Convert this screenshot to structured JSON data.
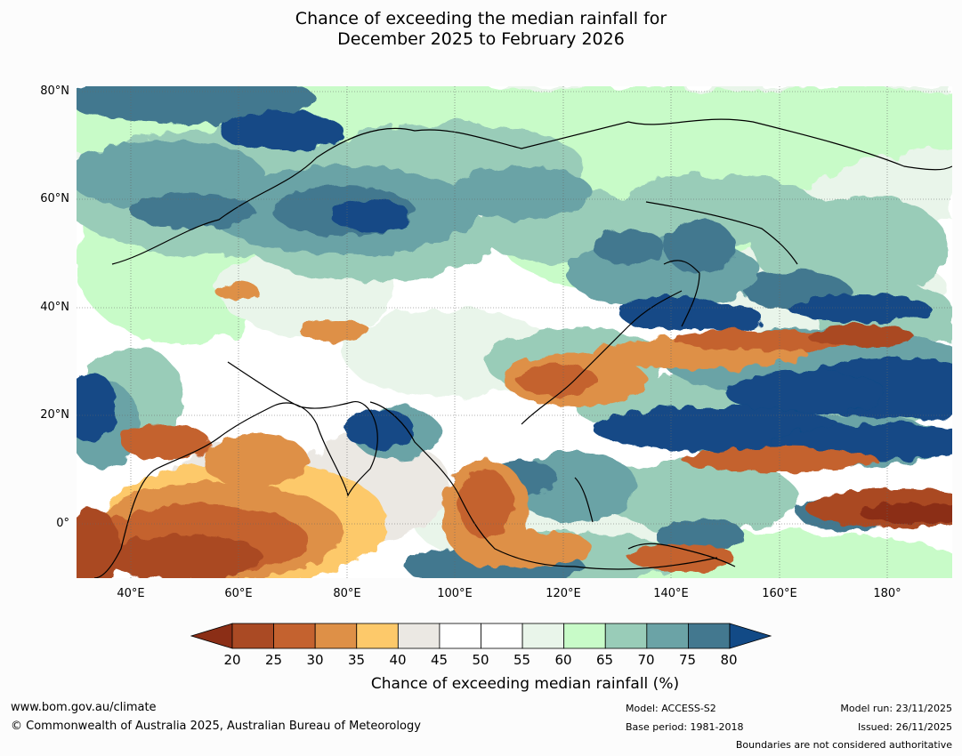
{
  "title": {
    "line1": "Chance of exceeding the median rainfall for",
    "line2": "December 2025 to February 2026"
  },
  "map": {
    "region": "Asia and western Pacific",
    "lat_range": [
      -10,
      81
    ],
    "lon_range": [
      30,
      192
    ],
    "lat_ticks": [
      {
        "value": 80,
        "label": "80°N"
      },
      {
        "value": 60,
        "label": "60°N"
      },
      {
        "value": 40,
        "label": "40°N"
      },
      {
        "value": 20,
        "label": "20°N"
      },
      {
        "value": 0,
        "label": "0°"
      }
    ],
    "lon_ticks": [
      {
        "value": 40,
        "label": "40°E"
      },
      {
        "value": 60,
        "label": "60°E"
      },
      {
        "value": 80,
        "label": "80°E"
      },
      {
        "value": 100,
        "label": "100°E"
      },
      {
        "value": 120,
        "label": "120°E"
      },
      {
        "value": 140,
        "label": "140°E"
      },
      {
        "value": 160,
        "label": "160°E"
      },
      {
        "value": 180,
        "label": "180°"
      }
    ]
  },
  "colorbar": {
    "label": "Chance of exceeding median rainfall (%)",
    "under_color": "#8b2e16",
    "over_color": "#124a86",
    "levels": [
      20,
      25,
      30,
      35,
      40,
      45,
      50,
      55,
      60,
      65,
      70,
      75,
      80
    ],
    "tick_labels": [
      "20",
      "25",
      "30",
      "35",
      "40",
      "45",
      "50",
      "55",
      "60",
      "65",
      "70",
      "75",
      "80"
    ],
    "colors": [
      "#aa4a24",
      "#c4622f",
      "#de9047",
      "#fdc96a",
      "#ebe8e3",
      "#ffffff",
      "#ffffff",
      "#e9f5ea",
      "#c8fbc8",
      "#99ccb8",
      "#6ba3a6",
      "#43788f"
    ]
  },
  "footer": {
    "website": "www.bom.gov.au/climate",
    "copyright": "© Commonwealth of Australia 2025, Australian Bureau of Meteorology",
    "model": "Model: ACCESS-S2",
    "base_period": "Base period: 1981-2018",
    "model_run": "Model run: 23/11/2025",
    "issued": "Issued: 26/11/2025",
    "disclaimer": "Boundaries are not considered authoritative"
  }
}
